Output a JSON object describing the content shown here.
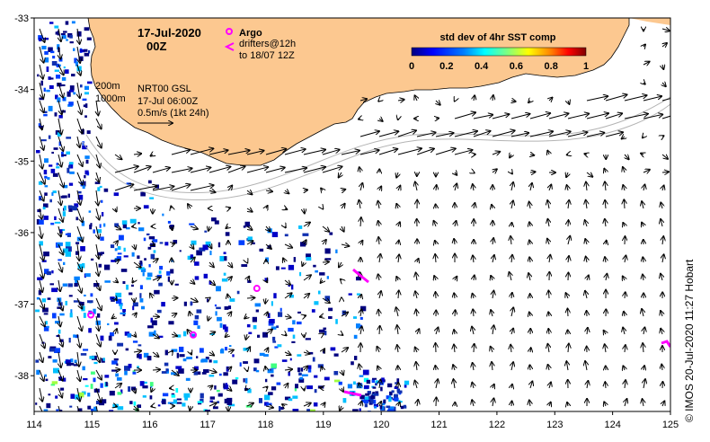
{
  "title": {
    "date": "17-Jul-2020",
    "time": "00Z"
  },
  "legend": {
    "argo_label": "Argo",
    "drifters_label": "drifters@12h",
    "drifters_sub": "to 18/07 12Z",
    "isobath_200": "200m",
    "isobath_1000": "1000m",
    "product": "NRT00 GSL",
    "product_time": "17-Jul 06:00Z",
    "scale_label": "0.5m/s (1kt 24h)"
  },
  "colorbar": {
    "title": "std dev of 4hr SST comp",
    "ticks": [
      "0",
      "0.2",
      "0.4",
      "0.6",
      "0.8",
      "1"
    ],
    "colors": [
      "#00007f",
      "#0000ff",
      "#007fff",
      "#00ffff",
      "#7fff7f",
      "#ffff00",
      "#ff7f00",
      "#ff0000",
      "#7f0000"
    ]
  },
  "axes": {
    "lon_ticks": [
      "114",
      "115",
      "116",
      "117",
      "118",
      "119",
      "120",
      "121",
      "122",
      "123",
      "124",
      "125"
    ],
    "lat_ticks": [
      "-33",
      "-34",
      "-35",
      "-36",
      "-37",
      "-38"
    ],
    "lon_range": [
      114,
      125
    ],
    "lat_range": [
      -38.5,
      -33
    ]
  },
  "credit": "© IMOS 20-Jul-2020 11:27 Hobart",
  "colors": {
    "land": "#fcc890",
    "argo": "#ff00ff",
    "drifter": "#ff00ff",
    "isobath": "#b4b4b4"
  },
  "argo_floats": [
    {
      "lon": 114.98,
      "lat": -37.15
    },
    {
      "lon": 116.75,
      "lat": -37.43
    },
    {
      "lon": 117.85,
      "lat": -36.78
    }
  ]
}
